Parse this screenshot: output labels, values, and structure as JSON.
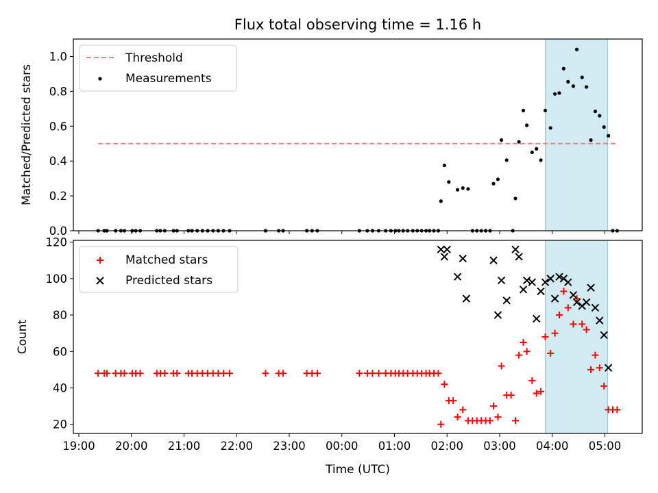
{
  "chart_data": {
    "title": "Flux total observing time = 1.16 h",
    "xlabel": "Time (UTC)",
    "x_tick_labels": [
      "19:00",
      "20:00",
      "21:00",
      "22:00",
      "23:00",
      "00:00",
      "01:00",
      "02:00",
      "03:00",
      "04:00",
      "05:00"
    ],
    "highlight_span": {
      "x_from": "03:52",
      "x_to": "05:03",
      "color": "#add8e6"
    },
    "panels": [
      {
        "type": "scatter",
        "ylabel": "Matched/Predicted stars",
        "ylim": [
          0,
          1.1
        ],
        "y_tick_labels": [
          "0.0",
          "0.2",
          "0.4",
          "0.6",
          "0.8",
          "1.0"
        ],
        "legend_position": "upper-left",
        "threshold": {
          "name": "Threshold",
          "value": 0.5,
          "x_from": "19:22",
          "x_to": "05:12",
          "color": "#f08080"
        },
        "series": [
          {
            "name": "Measurements",
            "color": "#000000",
            "marker": "dot",
            "points": [
              [
                "19:22",
                0
              ],
              [
                "19:29",
                0
              ],
              [
                "19:32",
                0
              ],
              [
                "19:42",
                0
              ],
              [
                "19:48",
                0
              ],
              [
                "19:52",
                0
              ],
              [
                "20:01",
                0
              ],
              [
                "20:05",
                0
              ],
              [
                "20:10",
                0
              ],
              [
                "20:29",
                0
              ],
              [
                "20:33",
                0
              ],
              [
                "20:38",
                0
              ],
              [
                "20:48",
                0
              ],
              [
                "20:52",
                0
              ],
              [
                "21:05",
                0
              ],
              [
                "21:09",
                0
              ],
              [
                "21:15",
                0
              ],
              [
                "21:21",
                0
              ],
              [
                "21:27",
                0
              ],
              [
                "21:33",
                0
              ],
              [
                "21:39",
                0
              ],
              [
                "21:45",
                0
              ],
              [
                "21:52",
                0
              ],
              [
                "22:33",
                0
              ],
              [
                "22:48",
                0
              ],
              [
                "22:53",
                0
              ],
              [
                "23:20",
                0
              ],
              [
                "23:26",
                0
              ],
              [
                "23:32",
                0
              ],
              [
                "00:20",
                0
              ],
              [
                "00:29",
                0
              ],
              [
                "00:35",
                0
              ],
              [
                "00:42",
                0
              ],
              [
                "00:50",
                0
              ],
              [
                "00:56",
                0
              ],
              [
                "01:01",
                0
              ],
              [
                "01:05",
                0
              ],
              [
                "01:10",
                0
              ],
              [
                "01:15",
                0
              ],
              [
                "01:21",
                0
              ],
              [
                "01:26",
                0
              ],
              [
                "01:31",
                0
              ],
              [
                "01:36",
                0
              ],
              [
                "01:40",
                0
              ],
              [
                "01:45",
                0
              ],
              [
                "01:50",
                0
              ],
              [
                "01:53",
                0.17
              ],
              [
                "01:57",
                0.375
              ],
              [
                "02:02",
                0.28
              ],
              [
                "02:12",
                0.235
              ],
              [
                "02:18",
                0.245
              ],
              [
                "02:24",
                0.24
              ],
              [
                "02:29",
                0
              ],
              [
                "02:34",
                0
              ],
              [
                "02:39",
                0
              ],
              [
                "02:44",
                0
              ],
              [
                "02:49",
                0
              ],
              [
                "02:53",
                0.27
              ],
              [
                "02:58",
                0.295
              ],
              [
                "03:02",
                0.52
              ],
              [
                "03:08",
                0.405
              ],
              [
                "03:15",
                0
              ],
              [
                "03:18",
                0.185
              ],
              [
                "03:22",
                0.51
              ],
              [
                "03:27",
                0.69
              ],
              [
                "03:31",
                0.605
              ],
              [
                "03:37",
                0.45
              ],
              [
                "03:42",
                0.47
              ],
              [
                "03:47",
                0.405
              ],
              [
                "03:52",
                0.69
              ],
              [
                "03:58",
                0.59
              ],
              [
                "04:03",
                0.785
              ],
              [
                "04:08",
                0.79
              ],
              [
                "04:13",
                0.93
              ],
              [
                "04:18",
                0.855
              ],
              [
                "04:24",
                0.83
              ],
              [
                "04:28",
                1.04
              ],
              [
                "04:34",
                0.88
              ],
              [
                "04:39",
                0.825
              ],
              [
                "04:44",
                0.52
              ],
              [
                "04:49",
                0.685
              ],
              [
                "04:54",
                0.66
              ],
              [
                "04:59",
                0.595
              ],
              [
                "05:04",
                0.545
              ],
              [
                "05:09",
                0
              ],
              [
                "05:14",
                0
              ]
            ]
          }
        ]
      },
      {
        "type": "scatter",
        "ylabel": "Count",
        "ylim": [
          15,
          121
        ],
        "y_tick_labels": [
          "20",
          "40",
          "60",
          "80",
          "100",
          "120"
        ],
        "legend_position": "upper-left",
        "series": [
          {
            "name": "Matched stars",
            "color": "#ff0000",
            "marker": "plus",
            "points": [
              [
                "19:22",
                48
              ],
              [
                "19:29",
                48
              ],
              [
                "19:32",
                48
              ],
              [
                "19:42",
                48
              ],
              [
                "19:48",
                48
              ],
              [
                "19:52",
                48
              ],
              [
                "20:01",
                48
              ],
              [
                "20:05",
                48
              ],
              [
                "20:10",
                48
              ],
              [
                "20:29",
                48
              ],
              [
                "20:33",
                48
              ],
              [
                "20:38",
                48
              ],
              [
                "20:48",
                48
              ],
              [
                "20:52",
                48
              ],
              [
                "21:05",
                48
              ],
              [
                "21:09",
                48
              ],
              [
                "21:15",
                48
              ],
              [
                "21:21",
                48
              ],
              [
                "21:27",
                48
              ],
              [
                "21:33",
                48
              ],
              [
                "21:39",
                48
              ],
              [
                "21:45",
                48
              ],
              [
                "21:52",
                48
              ],
              [
                "22:33",
                48
              ],
              [
                "22:48",
                48
              ],
              [
                "22:53",
                48
              ],
              [
                "23:20",
                48
              ],
              [
                "23:26",
                48
              ],
              [
                "23:32",
                48
              ],
              [
                "00:20",
                48
              ],
              [
                "00:29",
                48
              ],
              [
                "00:35",
                48
              ],
              [
                "00:42",
                48
              ],
              [
                "00:50",
                48
              ],
              [
                "00:56",
                48
              ],
              [
                "01:01",
                48
              ],
              [
                "01:05",
                48
              ],
              [
                "01:10",
                48
              ],
              [
                "01:15",
                48
              ],
              [
                "01:21",
                48
              ],
              [
                "01:26",
                48
              ],
              [
                "01:31",
                48
              ],
              [
                "01:36",
                48
              ],
              [
                "01:40",
                48
              ],
              [
                "01:45",
                48
              ],
              [
                "01:50",
                48
              ],
              [
                "01:53",
                20
              ],
              [
                "01:57",
                42
              ],
              [
                "02:02",
                33
              ],
              [
                "02:07",
                33
              ],
              [
                "02:12",
                24
              ],
              [
                "02:18",
                28
              ],
              [
                "02:24",
                22
              ],
              [
                "02:29",
                22
              ],
              [
                "02:34",
                22
              ],
              [
                "02:39",
                22
              ],
              [
                "02:44",
                22
              ],
              [
                "02:49",
                22
              ],
              [
                "02:53",
                30
              ],
              [
                "02:58",
                24
              ],
              [
                "03:02",
                52
              ],
              [
                "03:08",
                36
              ],
              [
                "03:13",
                36
              ],
              [
                "03:18",
                22
              ],
              [
                "03:22",
                58
              ],
              [
                "03:27",
                65
              ],
              [
                "03:31",
                60
              ],
              [
                "03:37",
                44
              ],
              [
                "03:42",
                37
              ],
              [
                "03:47",
                38
              ],
              [
                "03:52",
                68
              ],
              [
                "03:58",
                59
              ],
              [
                "04:03",
                70
              ],
              [
                "04:08",
                80
              ],
              [
                "04:13",
                93
              ],
              [
                "04:18",
                84
              ],
              [
                "04:24",
                75
              ],
              [
                "04:28",
                89
              ],
              [
                "04:34",
                75
              ],
              [
                "04:39",
                72
              ],
              [
                "04:44",
                50
              ],
              [
                "04:49",
                58
              ],
              [
                "04:54",
                51
              ],
              [
                "04:59",
                41
              ],
              [
                "05:04",
                28
              ],
              [
                "05:09",
                28
              ],
              [
                "05:14",
                28
              ]
            ]
          },
          {
            "name": "Predicted stars",
            "color": "#000000",
            "marker": "x",
            "points": [
              [
                "01:53",
                116
              ],
              [
                "01:57",
                112
              ],
              [
                "02:00",
                116
              ],
              [
                "02:12",
                101
              ],
              [
                "02:18",
                111
              ],
              [
                "02:22",
                89
              ],
              [
                "02:53",
                110
              ],
              [
                "02:58",
                80
              ],
              [
                "03:02",
                99
              ],
              [
                "03:08",
                88
              ],
              [
                "03:18",
                116
              ],
              [
                "03:22",
                112
              ],
              [
                "03:27",
                94
              ],
              [
                "03:31",
                99
              ],
              [
                "03:37",
                98
              ],
              [
                "03:42",
                78
              ],
              [
                "03:47",
                93
              ],
              [
                "03:52",
                98
              ],
              [
                "03:58",
                100
              ],
              [
                "04:03",
                89
              ],
              [
                "04:08",
                101
              ],
              [
                "04:13",
                100
              ],
              [
                "04:18",
                98
              ],
              [
                "04:24",
                91
              ],
              [
                "04:28",
                87
              ],
              [
                "04:34",
                85
              ],
              [
                "04:39",
                87
              ],
              [
                "04:44",
                95
              ],
              [
                "04:49",
                84
              ],
              [
                "04:54",
                77
              ],
              [
                "04:59",
                69
              ],
              [
                "05:04",
                51
              ]
            ]
          }
        ]
      }
    ]
  }
}
